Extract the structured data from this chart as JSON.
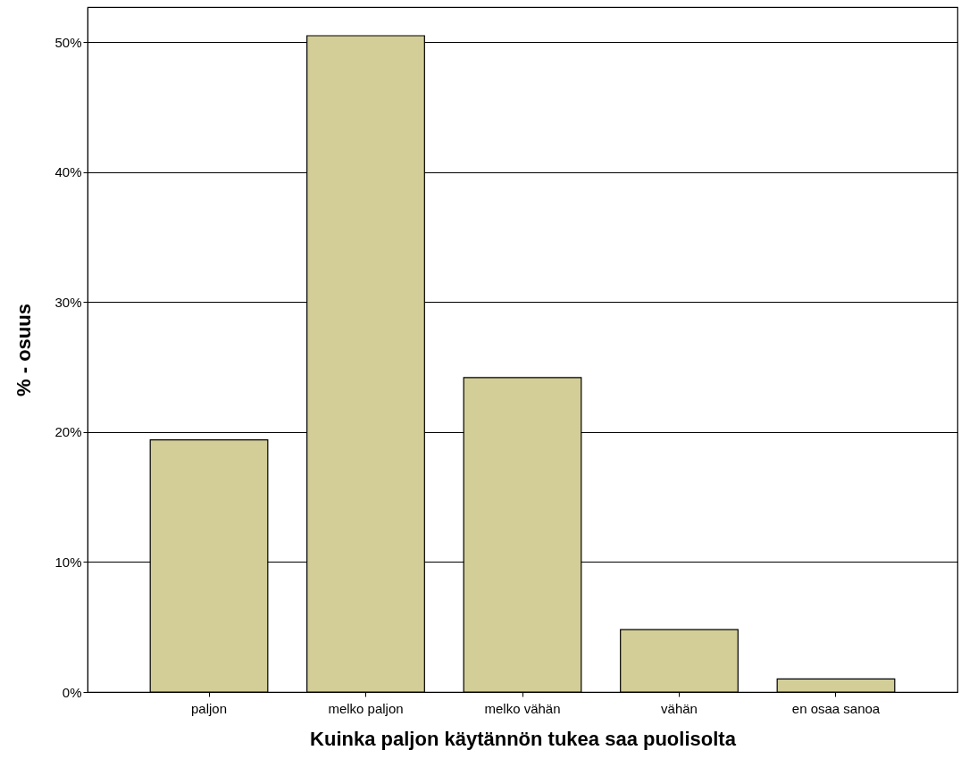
{
  "chart_data": {
    "type": "bar",
    "xlabel": "Kuinka paljon käytännön tukea saa puolisolta",
    "ylabel": "% - osuus",
    "categories": [
      "paljon",
      "melko paljon",
      "melko vähän",
      "vähän",
      "en osaa sanoa"
    ],
    "values": [
      19.4,
      50.5,
      24.2,
      4.8,
      1.0
    ],
    "color": "#d3ce97",
    "ylim": [
      0,
      52.7
    ],
    "yticks": [
      {
        "value": 0,
        "label": "0%"
      },
      {
        "value": 10,
        "label": "10%"
      },
      {
        "value": 20,
        "label": "20%"
      },
      {
        "value": 30,
        "label": "30%"
      },
      {
        "value": 40,
        "label": "40%"
      },
      {
        "value": 50,
        "label": "50%"
      }
    ],
    "grid": "y"
  }
}
